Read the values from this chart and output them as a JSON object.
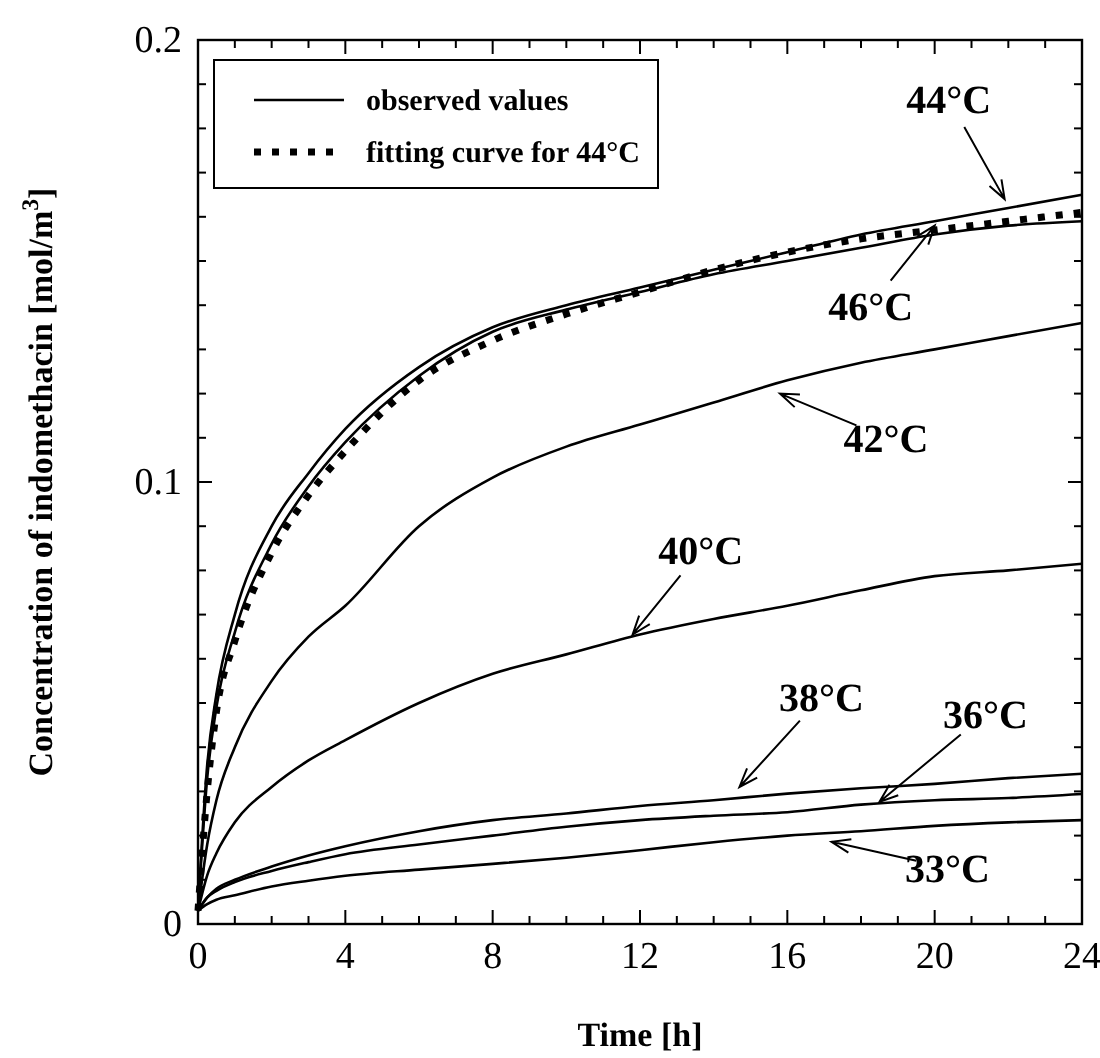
{
  "chart_data": {
    "type": "line",
    "xlabel": "Time [h]",
    "ylabel": "Concentration of indomethacin [mol/m$^{3}$]",
    "xlim": [
      0,
      24
    ],
    "ylim": [
      0,
      0.2
    ],
    "xticks": [
      0,
      {
        "value": 1,
        "label": null
      },
      {
        "value": 2,
        "label": null
      },
      {
        "value": 3,
        "label": null
      },
      4,
      {
        "value": 5,
        "label": null
      },
      {
        "value": 6,
        "label": null
      },
      {
        "value": 7,
        "label": null
      },
      8,
      {
        "value": 9,
        "label": null
      },
      {
        "value": 10,
        "label": null
      },
      {
        "value": 11,
        "label": null
      },
      12,
      {
        "value": 13,
        "label": null
      },
      {
        "value": 14,
        "label": null
      },
      {
        "value": 15,
        "label": null
      },
      16,
      {
        "value": 17,
        "label": null
      },
      {
        "value": 18,
        "label": null
      },
      {
        "value": 19,
        "label": null
      },
      20,
      {
        "value": 21,
        "label": null
      },
      {
        "value": 22,
        "label": null
      },
      {
        "value": 23,
        "label": null
      },
      24
    ],
    "yticks": [
      0,
      {
        "value": 0.01,
        "label": null
      },
      {
        "value": 0.02,
        "label": null
      },
      {
        "value": 0.03,
        "label": null
      },
      {
        "value": 0.04,
        "label": null
      },
      {
        "value": 0.05,
        "label": null
      },
      {
        "value": 0.06,
        "label": null
      },
      {
        "value": 0.07,
        "label": null
      },
      {
        "value": 0.08,
        "label": null
      },
      {
        "value": 0.09,
        "label": null
      },
      0.1,
      {
        "value": 0.11,
        "label": null
      },
      {
        "value": 0.12,
        "label": null
      },
      {
        "value": 0.13,
        "label": null
      },
      {
        "value": 0.14,
        "label": null
      },
      {
        "value": 0.15,
        "label": null
      },
      {
        "value": 0.16,
        "label": null
      },
      {
        "value": 0.17,
        "label": null
      },
      {
        "value": 0.18,
        "label": null
      },
      {
        "value": 0.19,
        "label": null
      },
      0.2
    ],
    "x": [
      0,
      0.25,
      0.5,
      1,
      2,
      3,
      4,
      6,
      8,
      10,
      12,
      14,
      16,
      18,
      20,
      22,
      24
    ],
    "legend": "top left",
    "grid": false,
    "marker": "none",
    "series": [
      {
        "name": "observed values",
        "color": "#000000",
        "line_style": "solid",
        "values": [
          0.003,
          0.036,
          0.052,
          0.07,
          0.09,
          0.102,
          0.112,
          0.126,
          0.135,
          0.14,
          0.144,
          0.148,
          0.152,
          0.156,
          0.159,
          0.162,
          0.165
        ]
      },
      {
        "color": "#000000",
        "line_style": "solid",
        "values": [
          0.003,
          0.033,
          0.049,
          0.066,
          0.086,
          0.099,
          0.109,
          0.124,
          0.134,
          0.139,
          0.143,
          0.147,
          0.15,
          0.153,
          0.156,
          0.158,
          0.159
        ]
      },
      {
        "color": "#000000",
        "line_style": "solid",
        "values": [
          0.003,
          0.018,
          0.028,
          0.04,
          0.055,
          0.065,
          0.072,
          0.09,
          0.101,
          0.108,
          0.113,
          0.118,
          0.123,
          0.127,
          0.13,
          0.133,
          0.136
        ]
      },
      {
        "color": "#000000",
        "line_style": "solid",
        "values": [
          0.003,
          0.011,
          0.016,
          0.023,
          0.031,
          0.037,
          0.0416,
          0.05,
          0.0566,
          0.061,
          0.0655,
          0.069,
          0.072,
          0.0755,
          0.0787,
          0.08,
          0.0815
        ]
      },
      {
        "color": "#000000",
        "line_style": "solid",
        "values": [
          0.003,
          0.006,
          0.008,
          0.01,
          0.013,
          0.0155,
          0.0176,
          0.021,
          0.0235,
          0.025,
          0.0267,
          0.028,
          0.0295,
          0.0307,
          0.0317,
          0.033,
          0.034
        ]
      },
      {
        "color": "#000000",
        "line_style": "solid",
        "values": [
          0.003,
          0.006,
          0.0075,
          0.0095,
          0.012,
          0.014,
          0.0158,
          0.018,
          0.02,
          0.022,
          0.0235,
          0.0245,
          0.0253,
          0.027,
          0.028,
          0.0285,
          0.0294
        ]
      },
      {
        "color": "#000000",
        "line_style": "solid",
        "values": [
          0.003,
          0.0045,
          0.0055,
          0.0065,
          0.0085,
          0.0098,
          0.0109,
          0.0123,
          0.0136,
          0.015,
          0.0167,
          0.0185,
          0.02,
          0.021,
          0.0222,
          0.023,
          0.0235
        ]
      },
      {
        "name": "fitting curve for 44°C",
        "color": "#000000",
        "line_style": "dotted",
        "values": [
          0.003,
          0.03,
          0.048,
          0.064,
          0.084,
          0.097,
          0.107,
          0.123,
          0.132,
          0.138,
          0.143,
          0.148,
          0.152,
          0.155,
          0.157,
          0.159,
          0.161
        ]
      }
    ],
    "annotations": [
      {
        "text": "44°C",
        "x": 21.9,
        "y": 0.164
      },
      {
        "text": "46°C",
        "x": 20,
        "y": 0.158
      },
      {
        "text": "42°C",
        "x": 15.8,
        "y": 0.12
      },
      {
        "text": "40°C",
        "x": 11.8,
        "y": 0.0655
      },
      {
        "text": "38°C",
        "x": 14.7,
        "y": 0.031
      },
      {
        "text": "36°C",
        "x": 18.5,
        "y": 0.0276
      },
      {
        "text": "33°C",
        "x": 17.2,
        "y": 0.0186
      }
    ]
  }
}
